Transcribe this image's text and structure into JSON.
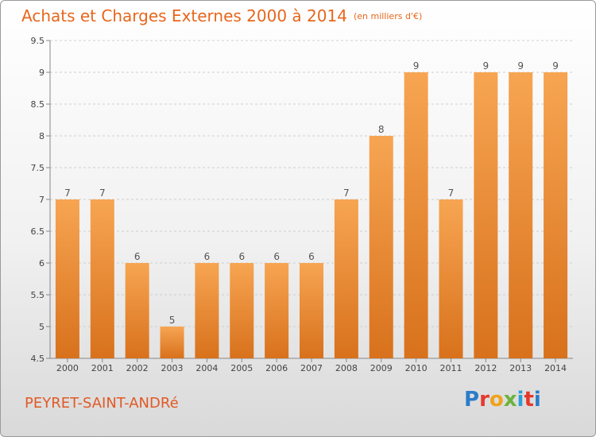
{
  "header": {
    "title": "Achats et Charges Externes 2000 à 2014",
    "unit": "(en milliers d'€)"
  },
  "footer": {
    "place": "PEYRET-SAINT-ANDRé",
    "brand": "Proxiti"
  },
  "colors": {
    "bar_top": "#f7a552",
    "bar_bottom": "#d8711c",
    "accent": "#e8661c"
  },
  "chart_data": {
    "type": "bar",
    "title": "Achats et Charges Externes 2000 à 2014",
    "subtitle": "(en milliers d'€)",
    "categories": [
      "2000",
      "2001",
      "2002",
      "2003",
      "2004",
      "2005",
      "2006",
      "2007",
      "2008",
      "2009",
      "2010",
      "2011",
      "2012",
      "2013",
      "2014"
    ],
    "values": [
      7,
      7,
      6,
      5,
      6,
      6,
      6,
      6,
      7,
      8,
      9,
      7,
      9,
      9,
      9
    ],
    "y_ticks": [
      "4.5",
      "5",
      "5.5",
      "6",
      "6.5",
      "7",
      "7.5",
      "8",
      "8.5",
      "9",
      "9.5"
    ],
    "ylim": [
      4.5,
      9.5
    ],
    "grid": true,
    "legend": "none"
  }
}
